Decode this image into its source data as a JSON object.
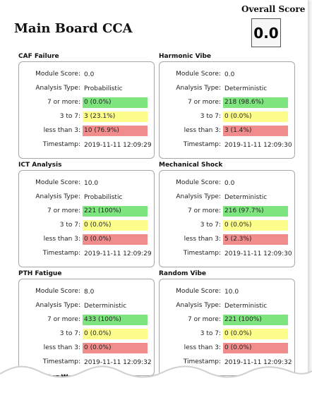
{
  "header": {
    "title": "Main Board CCA",
    "overall_label": "Overall Score",
    "overall_value": "0.0"
  },
  "labels": {
    "module_score": "Module Score:",
    "analysis_type": "Analysis Type:",
    "seven_plus": "7 or more:",
    "three_to_seven": "3 to 7:",
    "less_than_three": "less than 3:",
    "timestamp": "Timestamp:"
  },
  "sections": [
    {
      "title": "CAF Failure",
      "score": "0.0",
      "type": "Probabilistic",
      "high": "0 (0.0%)",
      "mid": "3 (23.1%)",
      "low": "10 (76.9%)",
      "timestamp": "2019-11-11 12:09:29"
    },
    {
      "title": "Harmonic Vibe",
      "score": "0.0",
      "type": "Deterministic",
      "high": "218 (98.6%)",
      "mid": "0 (0.0%)",
      "low": "3 (1.4%)",
      "timestamp": "2019-11-11 12:09:30"
    },
    {
      "title": "ICT Analysis",
      "score": "10.0",
      "type": "Probabilistic",
      "high": "221 (100%)",
      "mid": "0 (0.0%)",
      "low": "0 (0.0%)",
      "timestamp": "2019-11-11 12:09:29"
    },
    {
      "title": "Mechanical Shock",
      "score": "0.0",
      "type": "Deterministic",
      "high": "216 (97.7%)",
      "mid": "0 (0.0%)",
      "low": "5 (2.3%)",
      "timestamp": "2019-11-11 12:09:30"
    },
    {
      "title": "PTH Fatigue",
      "score": "8.0",
      "type": "Deterministic",
      "high": "433 (100%)",
      "mid": "0 (0.0%)",
      "low": "0 (0.0%)",
      "timestamp": "2019-11-11 12:09:32"
    },
    {
      "title": "Random Vibe",
      "score": "10.0",
      "type": "Deterministic",
      "high": "221 (100%)",
      "mid": "0 (0.0%)",
      "low": "0 (0.0%)",
      "timestamp": "2019-11-11 12:09:32"
    }
  ],
  "partial_section_title": "...ductor W",
  "colors": {
    "green": "#7ee47e",
    "yellow": "#fdfd8c",
    "red": "#f08c8c"
  }
}
